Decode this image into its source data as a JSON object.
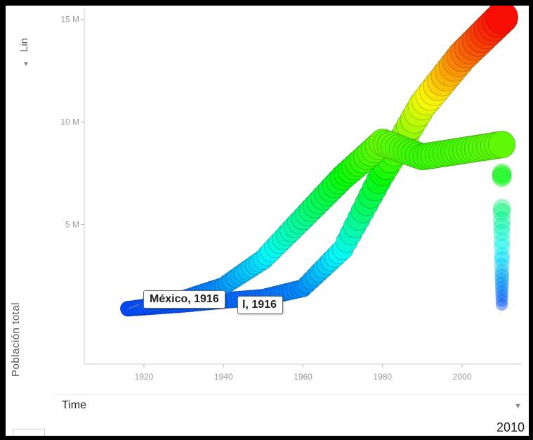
{
  "controls": {
    "scale_label": "Lin",
    "scale_arrow": "▼",
    "time_label": "Time",
    "time_arrow": "▼",
    "current_year": "2010"
  },
  "tooltips": [
    {
      "text": "México, 1916"
    },
    {
      "text": "l, 1916"
    }
  ],
  "chart_data": {
    "type": "scatter",
    "title": "",
    "ylabel": "Población total",
    "xlabel": "",
    "xlim": [
      1905,
      2015
    ],
    "ylim": [
      -1800000,
      15500000
    ],
    "x_ticks": [
      1920,
      1940,
      1960,
      1980,
      2000
    ],
    "y_ticks": [
      5000000,
      10000000,
      15000000
    ],
    "y_tick_labels": [
      "5 M",
      "10 M",
      "15 M"
    ],
    "grid": false,
    "series": [
      {
        "x": [
          1916,
          1920,
          1930,
          1940,
          1950,
          1960,
          1970,
          1980,
          1990,
          2000,
          2010
        ],
        "y": [
          900000,
          950000,
          1100000,
          1300000,
          1450000,
          1900000,
          3800000,
          7500000,
          10800000,
          13200000,
          15100000
        ]
      },
      {
        "x": [
          1916,
          1920,
          1930,
          1940,
          1950,
          1960,
          1970,
          1980,
          1990,
          2000,
          2010
        ],
        "y": [
          900000,
          1000000,
          1400000,
          2000000,
          3300000,
          5300000,
          7300000,
          9000000,
          8300000,
          8600000,
          8900000
        ]
      },
      {
        "x": [
          2010,
          2010,
          2010,
          2010,
          2010,
          2010,
          2010,
          2010,
          2010,
          2010,
          2010,
          2010,
          2010,
          2010,
          2010,
          2010,
          2010,
          2010,
          2010,
          2010,
          2010,
          2010
        ],
        "y": [
          7500000,
          7400000,
          7300000,
          5800000,
          5600000,
          5200000,
          4900000,
          4600000,
          4200000,
          3900000,
          3500000,
          3300000,
          3000000,
          2700000,
          2500000,
          2300000,
          2100000,
          1900000,
          1700000,
          1500000,
          1300000,
          1100000
        ]
      }
    ]
  }
}
